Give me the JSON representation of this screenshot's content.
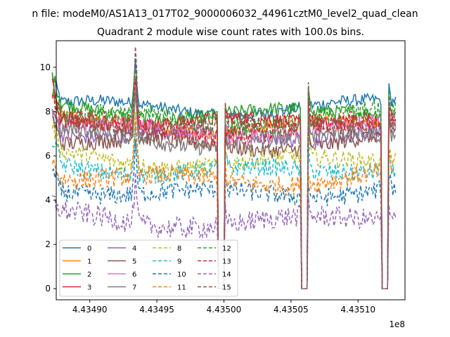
{
  "chart_data": {
    "type": "line",
    "suptitle": "n file: modeM0/AS1A13_017T02_9000006032_44961cztM0_level2_quad_clean",
    "title": "Quadrant 2 module wise count rates with 100.0s bins.",
    "xlabel": "",
    "ylabel": "",
    "x_offset_label": "1e8",
    "xlim": [
      443487500,
      443513500
    ],
    "ylim": [
      -0.5,
      11.2
    ],
    "x_start": 443487200,
    "x_end": 443512800,
    "bin_seconds": 100,
    "x_ticks": [
      443490000,
      443495000,
      443500000,
      443505000,
      443510000
    ],
    "x_tick_labels": [
      "4.43490",
      "4.43495",
      "4.43500",
      "4.43505",
      "4.43510"
    ],
    "y_ticks": [
      0,
      2,
      4,
      6,
      8,
      10
    ],
    "y_tick_labels": [
      "0",
      "2",
      "4",
      "6",
      "8",
      "10"
    ],
    "gaps": [
      {
        "start": 443499600,
        "end": 443500000
      },
      {
        "start": 443505800,
        "end": 443506200
      },
      {
        "start": 443511800,
        "end": 443512200
      }
    ],
    "spikes": [
      {
        "x": 443493400,
        "height": 2.6
      },
      {
        "x": 443500000,
        "height": 1.2
      },
      {
        "x": 443506200,
        "height": 1.6
      },
      {
        "x": 443512200,
        "height": 1.2
      }
    ],
    "legend": {
      "location": "lower-left",
      "columns": 4
    },
    "series": [
      {
        "name": "0",
        "color": "#1f77b4",
        "dash": "solid",
        "level": 8.4,
        "start": 9.6,
        "spike_value": 9.9
      },
      {
        "name": "1",
        "color": "#ff7f0e",
        "dash": "solid",
        "level": 7.6,
        "start": 8.4,
        "spike_value": 9.2
      },
      {
        "name": "2",
        "color": "#2ca02c",
        "dash": "solid",
        "level": 8.2,
        "start": 9.5,
        "spike_value": 9.5
      },
      {
        "name": "3",
        "color": "#d62728",
        "dash": "solid",
        "level": 7.8,
        "start": 9.4,
        "spike_value": 9.3
      },
      {
        "name": "4",
        "color": "#9467bd",
        "dash": "solid",
        "level": 7.2,
        "start": 8.2,
        "spike_value": 8.7
      },
      {
        "name": "5",
        "color": "#8c564b",
        "dash": "solid",
        "level": 6.8,
        "start": 8.0,
        "spike_value": 8.5
      },
      {
        "name": "6",
        "color": "#e377c2",
        "dash": "solid",
        "level": 7.4,
        "start": 8.1,
        "spike_value": 9.0
      },
      {
        "name": "7",
        "color": "#7f7f7f",
        "dash": "solid",
        "level": 7.0,
        "start": 8.0,
        "spike_value": 8.6
      },
      {
        "name": "8",
        "color": "#bcbd22",
        "dash": "dashed",
        "level": 6.0,
        "start": 7.2,
        "spike_value": 7.8
      },
      {
        "name": "9",
        "color": "#17becf",
        "dash": "dashed",
        "level": 5.6,
        "start": 6.7,
        "spike_value": 7.4
      },
      {
        "name": "10",
        "color": "#1f77b4",
        "dash": "dashed",
        "level": 4.6,
        "start": 5.4,
        "spike_value": 6.2
      },
      {
        "name": "11",
        "color": "#ff7f0e",
        "dash": "dashed",
        "level": 5.2,
        "start": 6.0,
        "spike_value": 6.9
      },
      {
        "name": "12",
        "color": "#2ca02c",
        "dash": "dashed",
        "level": 7.9,
        "start": 9.0,
        "spike_value": 9.4
      },
      {
        "name": "13",
        "color": "#d62728",
        "dash": "dashed",
        "level": 7.5,
        "start": 8.6,
        "spike_value": 9.1
      },
      {
        "name": "14",
        "color": "#9467bd",
        "dash": "dashed",
        "level": 3.3,
        "start": 3.7,
        "spike_value": 4.7
      },
      {
        "name": "15",
        "color": "#8c564b",
        "dash": "dashed",
        "level": 7.7,
        "start": 9.3,
        "spike_value": 10.7
      }
    ]
  }
}
